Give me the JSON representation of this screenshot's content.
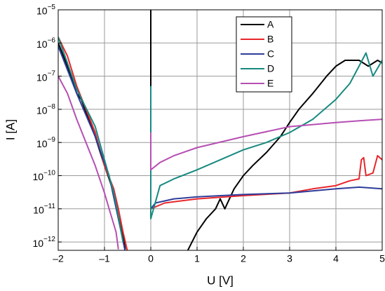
{
  "chart_data": {
    "type": "line",
    "xlabel": "U [V]",
    "ylabel": "I [A]",
    "log_y": true,
    "grid": true,
    "xlim": [
      -2,
      5
    ],
    "ylim": [
      5.6e-13,
      1e-05
    ],
    "xticks": [
      {
        "value": -2,
        "label": "–2"
      },
      {
        "value": -1,
        "label": "–1"
      },
      0,
      1,
      2,
      3,
      4,
      5
    ],
    "yticks": [
      {
        "value": 1e-12,
        "label": "10−12"
      },
      {
        "value": 1e-11,
        "label": "10−11"
      },
      {
        "value": 1e-10,
        "label": "10−10"
      },
      {
        "value": 1e-09,
        "label": "10−9"
      },
      {
        "value": 1e-08,
        "label": "10−8"
      },
      {
        "value": 1e-07,
        "label": "10−7"
      },
      {
        "value": 1e-06,
        "label": "10−6"
      },
      {
        "value": 1e-05,
        "label": "10−5"
      }
    ],
    "series": [
      {
        "name": "A",
        "color": "#000000",
        "x": [
          -2,
          -1.8,
          -1.6,
          -1.5,
          -1.4,
          -1.2,
          -1.0,
          -0.9,
          -0.8,
          -0.7,
          -0.6,
          -0.55,
          -0.3,
          0,
          0,
          0.5,
          0.8,
          1.0,
          1.2,
          1.4,
          1.5,
          1.6,
          1.8,
          2.0,
          2.2,
          2.5,
          2.8,
          3.0,
          3.2,
          3.5,
          3.8,
          4.0,
          4.2,
          4.5,
          4.7,
          4.9,
          5.0
        ],
        "values": [
          1e-06,
          2e-07,
          3e-08,
          2e-08,
          8e-09,
          1.5e-09,
          2e-10,
          8e-11,
          3e-11,
          6e-12,
          1.5e-12,
          6e-13,
          null,
          1e-05,
          1e-10,
          null,
          5.6e-13,
          2e-12,
          5e-12,
          1e-11,
          2e-11,
          1e-11,
          4e-11,
          1e-10,
          2e-10,
          5e-10,
          1.5e-09,
          4e-09,
          1e-08,
          3e-08,
          1e-07,
          2e-07,
          3e-07,
          3e-07,
          2e-07,
          3e-07,
          2.5e-07
        ]
      },
      {
        "name": "B",
        "color": "#e8262b",
        "x": [
          -2,
          -1.8,
          -1.6,
          -1.4,
          -1.2,
          -1.0,
          -0.8,
          -0.7,
          -0.6,
          -0.5,
          -0.2,
          0,
          0.3,
          1,
          2,
          3,
          3.5,
          4,
          4.3,
          4.5,
          4.55,
          4.6,
          4.65,
          4.8,
          4.9,
          5.0
        ],
        "values": [
          1.5e-06,
          4e-07,
          5e-08,
          1e-08,
          2e-09,
          2e-10,
          4e-11,
          1e-11,
          2e-12,
          5e-13,
          null,
          1e-11,
          1.5e-11,
          2e-11,
          2.5e-11,
          3e-11,
          4e-11,
          5e-11,
          7e-11,
          8e-11,
          3e-10,
          3.5e-10,
          1e-10,
          1.2e-10,
          4e-10,
          3e-10
        ]
      },
      {
        "name": "C",
        "color": "#2e3d9a",
        "x": [
          -2,
          -1.6,
          -1.2,
          -0.9,
          -0.7,
          -0.55,
          -0.2,
          0,
          0.1,
          0.5,
          1,
          2,
          3,
          4,
          4.5,
          5
        ],
        "values": [
          8e-07,
          3e-08,
          1.5e-09,
          1e-10,
          5e-12,
          5e-13,
          null,
          1e-11,
          1.5e-11,
          2e-11,
          2.3e-11,
          2.7e-11,
          3e-11,
          4e-11,
          4.5e-11,
          4e-11
        ]
      },
      {
        "name": "D",
        "color": "#178a80",
        "x": [
          -2,
          -1.6,
          -1.2,
          -1.0,
          -0.8,
          -0.7,
          -0.6,
          -0.3,
          0,
          0,
          0.2,
          0.5,
          1,
          1.5,
          2,
          2.5,
          3,
          3.5,
          4,
          4.3,
          4.5,
          4.65,
          4.8,
          5
        ],
        "values": [
          1.5e-06,
          4e-08,
          3e-09,
          3e-10,
          3e-11,
          6e-12,
          1e-12,
          null,
          5e-08,
          5e-12,
          5e-11,
          8e-11,
          1.5e-10,
          3e-10,
          6e-10,
          1e-09,
          2e-09,
          5e-09,
          2e-08,
          6e-08,
          2e-07,
          5e-07,
          1e-07,
          3e-07
        ]
      },
      {
        "name": "E",
        "color": "#b64fb3",
        "x": [
          -2,
          -1.8,
          -1.6,
          -1.4,
          -1.2,
          -1.0,
          -0.9,
          -0.75,
          -0.7,
          -0.3,
          0,
          0,
          0.2,
          0.5,
          1,
          2,
          3,
          4,
          4.5,
          5
        ],
        "values": [
          1e-07,
          3e-08,
          5e-09,
          1e-09,
          2e-10,
          3e-11,
          1e-11,
          2e-12,
          6e-13,
          null,
          2e-09,
          1.5e-10,
          2.5e-10,
          4e-10,
          7e-10,
          1.5e-09,
          3e-09,
          4e-09,
          4.5e-09,
          5e-09
        ]
      }
    ]
  }
}
